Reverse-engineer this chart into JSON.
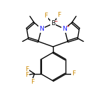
{
  "bond_color": "#000000",
  "N_color": "#1a1aff",
  "B_color": "#000000",
  "F_color": "#cc8800",
  "charge_neg_color": "#cc0000",
  "charge_pos_color": "#cc0000",
  "line_width": 1.0,
  "db_sep": 0.07,
  "figsize": [
    1.52,
    1.52
  ],
  "dpi": 100,
  "xlim": [
    0,
    10
  ],
  "ylim": [
    0,
    10
  ]
}
